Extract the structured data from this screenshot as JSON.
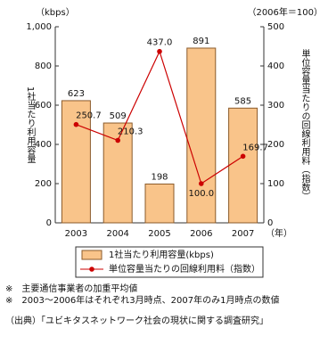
{
  "chart_data": {
    "type": "bar-line",
    "y_unit": "（kbps）",
    "y2_unit": "（2006年＝100）",
    "ylabel": "1社当たり利用容量",
    "y2label": "単位容量当たりの回線利用料（指数）",
    "x_unit": "（年）",
    "categories": [
      "2003",
      "2004",
      "2005",
      "2006",
      "2007"
    ],
    "series": [
      {
        "name": "1社当たり利用容量(kbps)",
        "type": "bar",
        "color": "#f9c48a",
        "values": [
          623,
          509,
          198,
          891,
          585
        ]
      },
      {
        "name": "単位容量当たりの回線利用料（指数）",
        "type": "line",
        "axis": "y2",
        "color": "#cc0000",
        "values": [
          250.7,
          210.3,
          437,
          100,
          169.7
        ],
        "value_labels": [
          "250.7",
          "210.3",
          "437.0",
          "100.0",
          "169.7"
        ]
      }
    ],
    "ylim": [
      0,
      1000
    ],
    "yticks": [
      0,
      200,
      400,
      600,
      800,
      {
        "value": 1000,
        "label": "1,000"
      }
    ],
    "y2lim": [
      0,
      500
    ],
    "y2ticks": [
      0,
      100,
      200,
      300,
      400,
      500
    ],
    "notes": [
      "※　主要通信事業者の加重平均値",
      "※　2003～2006年はそれぞれ3月時点、2007年のみ1月時点の数値"
    ],
    "source": "（出典）「ユビキタスネットワーク社会の現状に関する調査研究」"
  }
}
